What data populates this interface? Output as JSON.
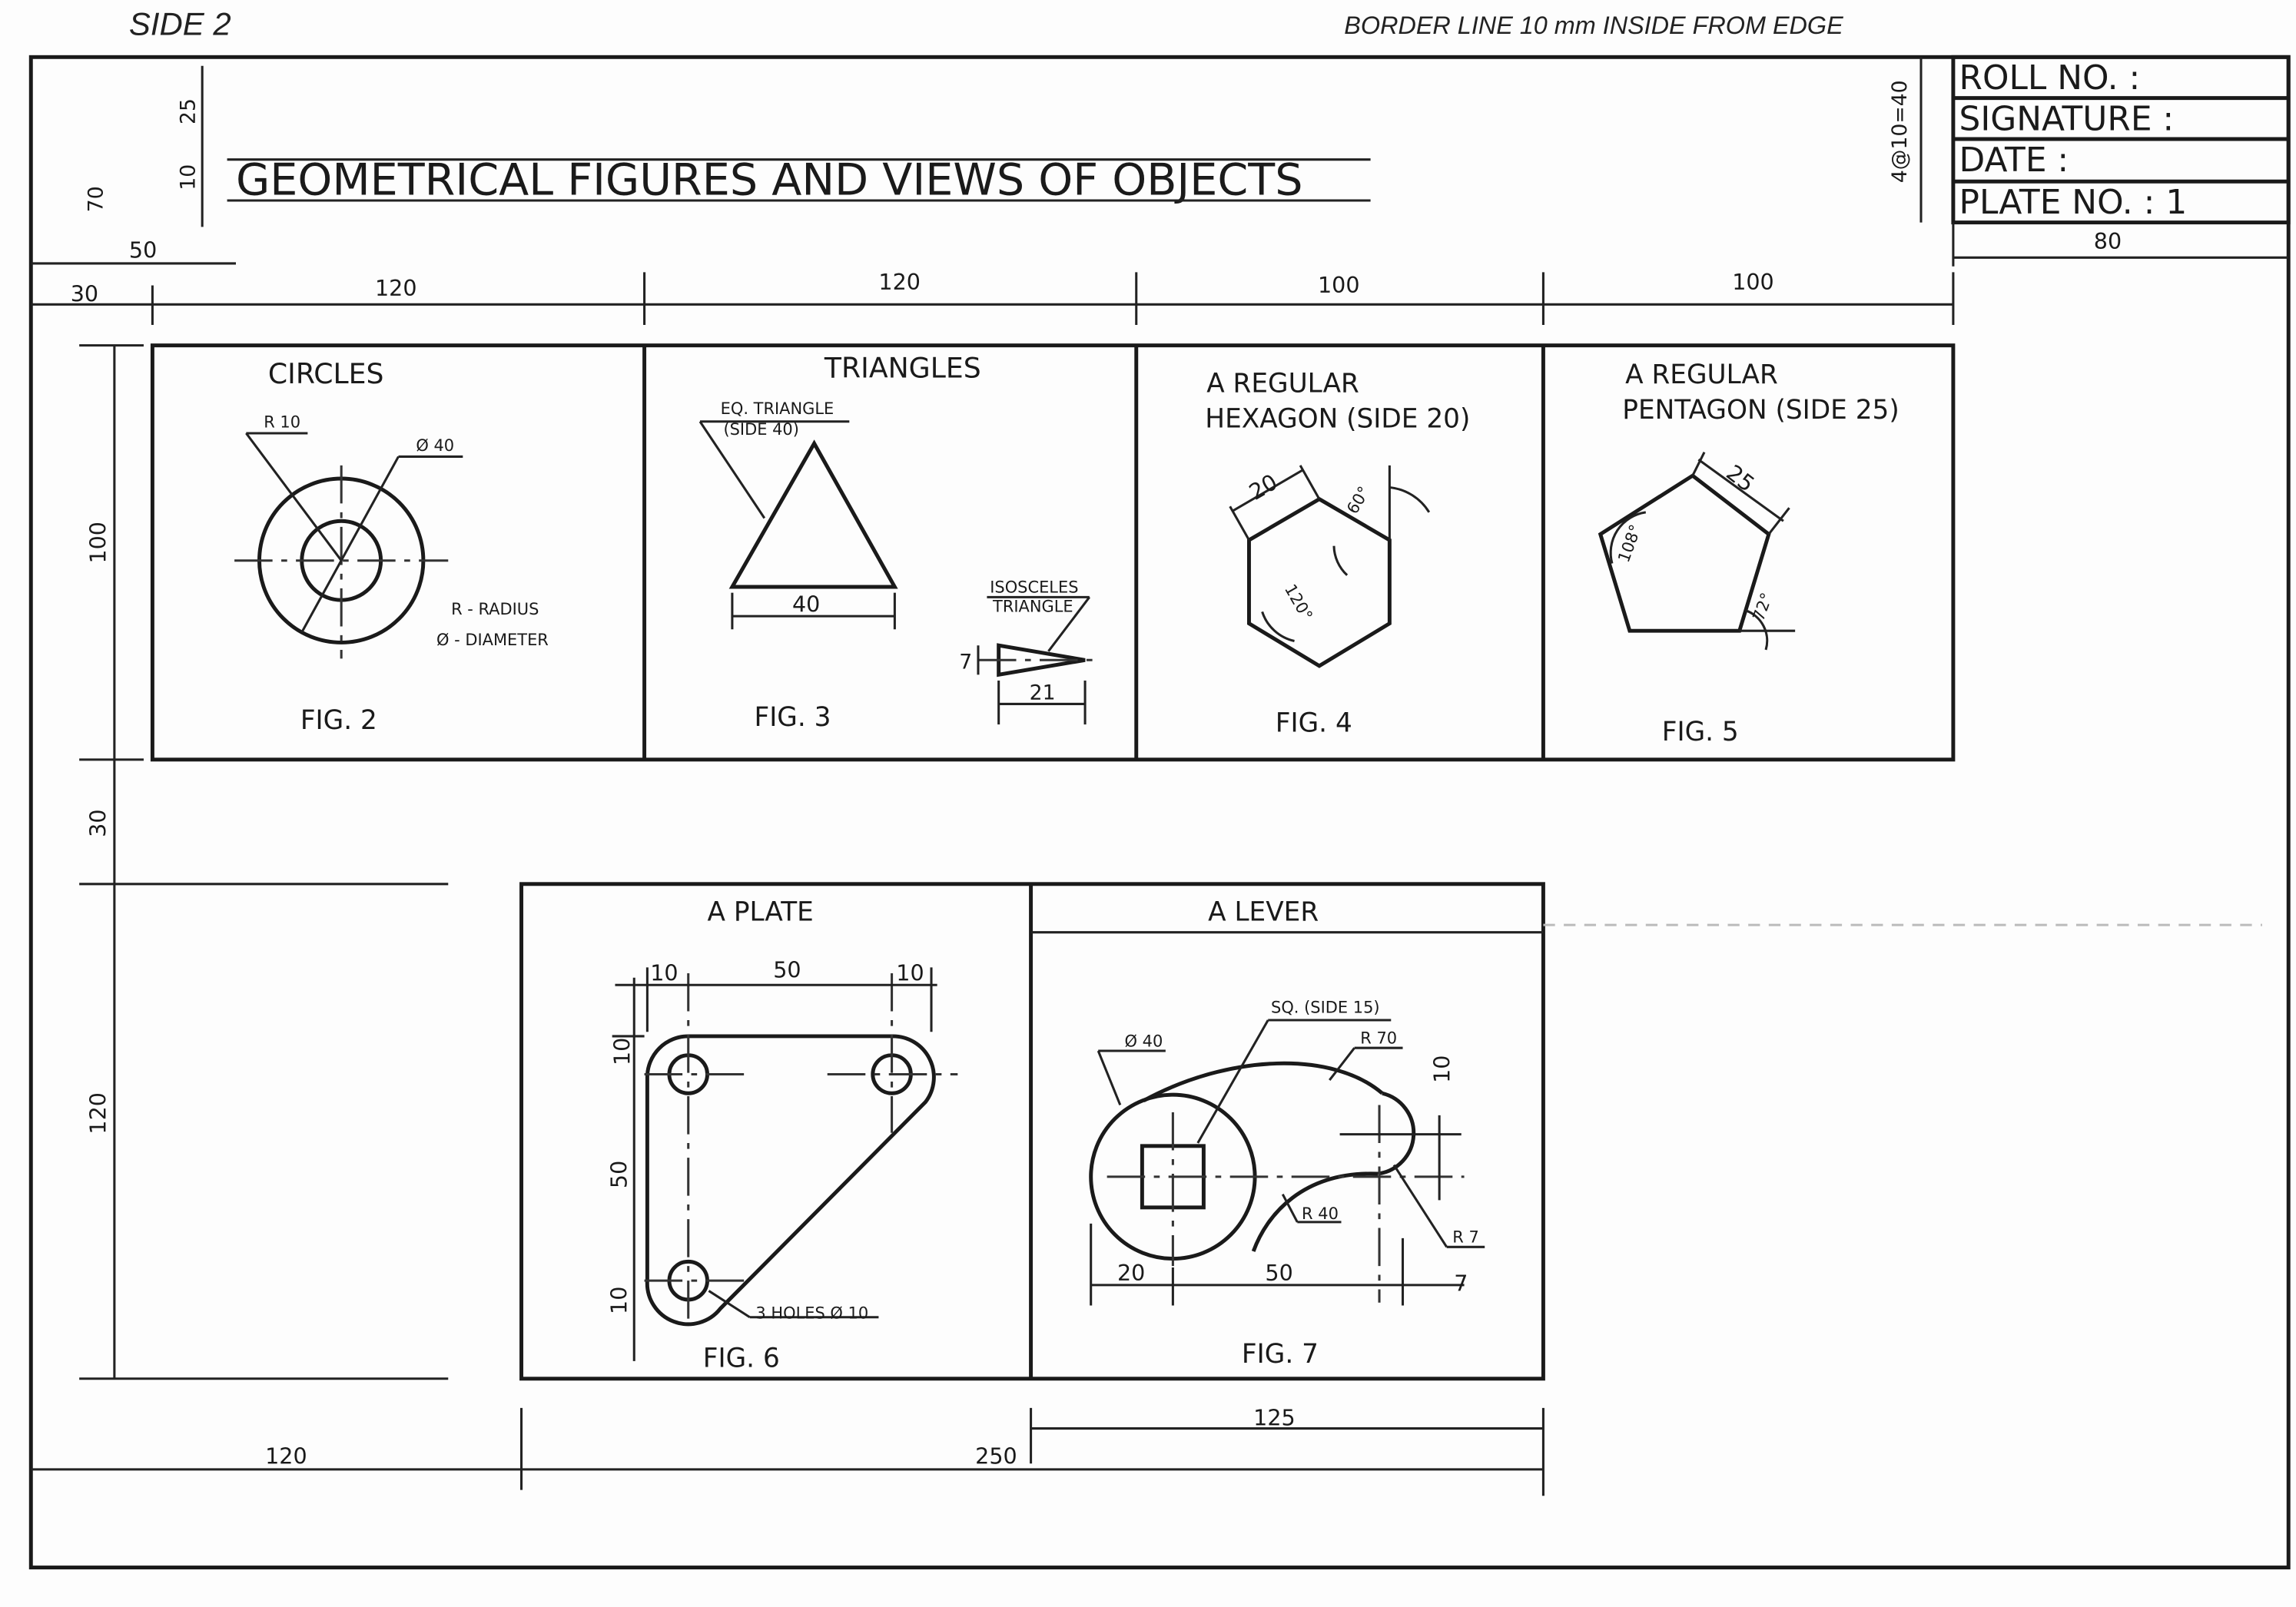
{
  "header": {
    "side": "SIDE 2",
    "border_note": "BORDER LINE 10 mm INSIDE FROM EDGE"
  },
  "title": "GEOMETRICAL FIGURES AND VIEWS OF OBJECTS",
  "title_block": {
    "roll_no": "ROLL NO. :",
    "signature": "SIGNATURE :",
    "date": "DATE :",
    "plate_no": "PLATE NO. : 1",
    "width_dim": "80",
    "row_dim": "4@10=40"
  },
  "layout_dims": {
    "left_margin": "30",
    "title_offset": "50",
    "title_height": "10",
    "title_top": "25",
    "top_band": "70",
    "col1": "120",
    "col2": "120",
    "col3": "100",
    "col4": "100",
    "row1": "100",
    "gap": "30",
    "row2": "120",
    "bottom_left": "120",
    "bottom_mid": "250",
    "bottom_lever": "125"
  },
  "figures": {
    "circles": {
      "heading": "CIRCLES",
      "r_label": "R 10",
      "d_label": "Ø 40",
      "legend_r": "R - RADIUS",
      "legend_d": "Ø - DIAMETER",
      "caption": "FIG. 2"
    },
    "triangles": {
      "heading": "TRIANGLES",
      "eq_label_1": "EQ. TRIANGLE",
      "eq_label_2": "(SIDE 40)",
      "eq_base": "40",
      "iso_label_1": "ISOSCELES",
      "iso_label_2": "TRIANGLE",
      "iso_height": "7",
      "iso_length": "21",
      "caption": "FIG. 3"
    },
    "hexagon": {
      "heading_1": "A REGULAR",
      "heading_2": "HEXAGON (SIDE 20)",
      "side": "20",
      "angle_ext": "60°",
      "angle_int": "120°",
      "caption": "FIG. 4"
    },
    "pentagon": {
      "heading_1": "A REGULAR",
      "heading_2": "PENTAGON (SIDE 25)",
      "side": "25",
      "angle_int": "108°",
      "angle_ext": "72°",
      "caption": "FIG. 5"
    },
    "plate": {
      "heading": "A PLATE",
      "dim_left": "10",
      "dim_mid": "50",
      "dim_right": "10",
      "dim_v_top": "10",
      "dim_v_mid": "50",
      "dim_v_bot": "10",
      "holes": "3 HOLES Ø 10",
      "caption": "FIG. 6"
    },
    "lever": {
      "heading": "A LEVER",
      "square": "SQ. (SIDE 15)",
      "dia": "Ø 40",
      "r70": "R 70",
      "r40": "R 40",
      "r7": "R 7",
      "v10": "10",
      "h20": "20",
      "h50": "50",
      "h7": "7",
      "caption": "FIG. 7"
    }
  }
}
